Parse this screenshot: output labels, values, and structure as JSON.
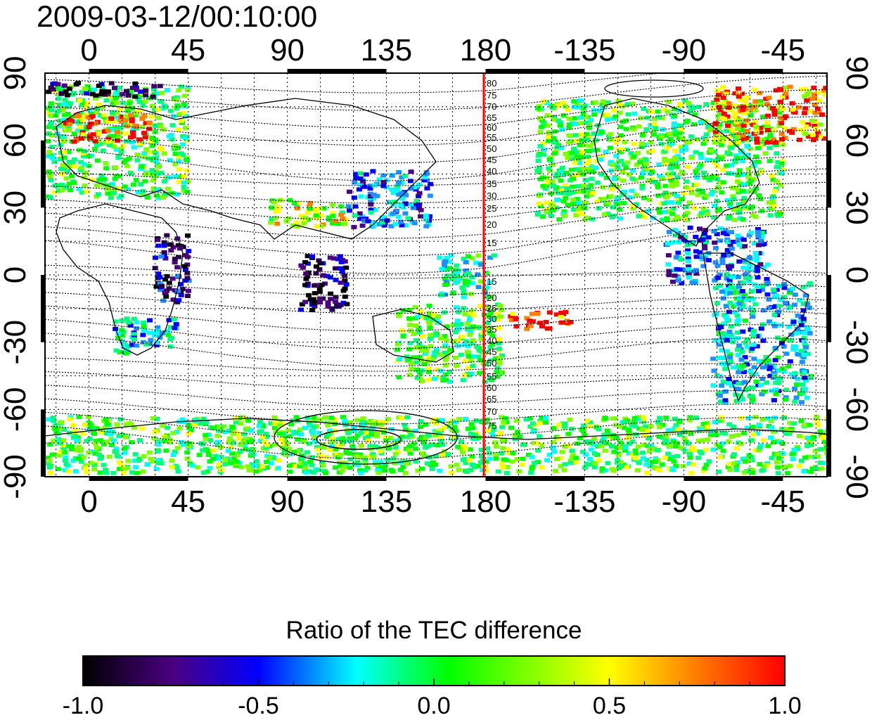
{
  "timestamp": "2009-03-12/00:10:00",
  "top_lon_labels": [
    "0",
    "45",
    "90",
    "135",
    "180",
    "-135",
    "-90",
    "-45"
  ],
  "bottom_lon_labels": [
    "0",
    "45",
    "90",
    "135",
    "180",
    "-135",
    "-90",
    "-45"
  ],
  "left_lat_labels": [
    "90",
    "60",
    "30",
    "0",
    "-30",
    "-60",
    "-90"
  ],
  "right_lat_labels": [
    "90",
    "60",
    "30",
    "0",
    "-30",
    "-60",
    "-90"
  ],
  "map": {
    "lon_range": [
      -20,
      335
    ],
    "lat_range": [
      -90,
      90
    ],
    "highlight_meridian_lon": 180,
    "highlight_color": "#ff0000",
    "grid": "dotted",
    "magnetic_lat_labels_north": [
      "80",
      "75",
      "70",
      "65",
      "60",
      "55",
      "50",
      "45",
      "40",
      "35",
      "30",
      "25",
      "20",
      "15"
    ],
    "magnetic_lat_labels_south": [
      "15",
      "20",
      "25",
      "30",
      "35",
      "40",
      "45",
      "50",
      "55",
      "60",
      "65",
      "70",
      "75"
    ]
  },
  "colorbar": {
    "title": "Ratio of the TEC difference",
    "min": -1.0,
    "max": 1.0,
    "tick_labels": [
      "-1.0",
      "-0.5",
      "0.0",
      "0.5",
      "1.0"
    ],
    "colors": [
      "#000000",
      "#4b0082",
      "#0000ff",
      "#00ffff",
      "#00ff00",
      "#ffff00",
      "#ff8000",
      "#ff0000"
    ]
  }
}
